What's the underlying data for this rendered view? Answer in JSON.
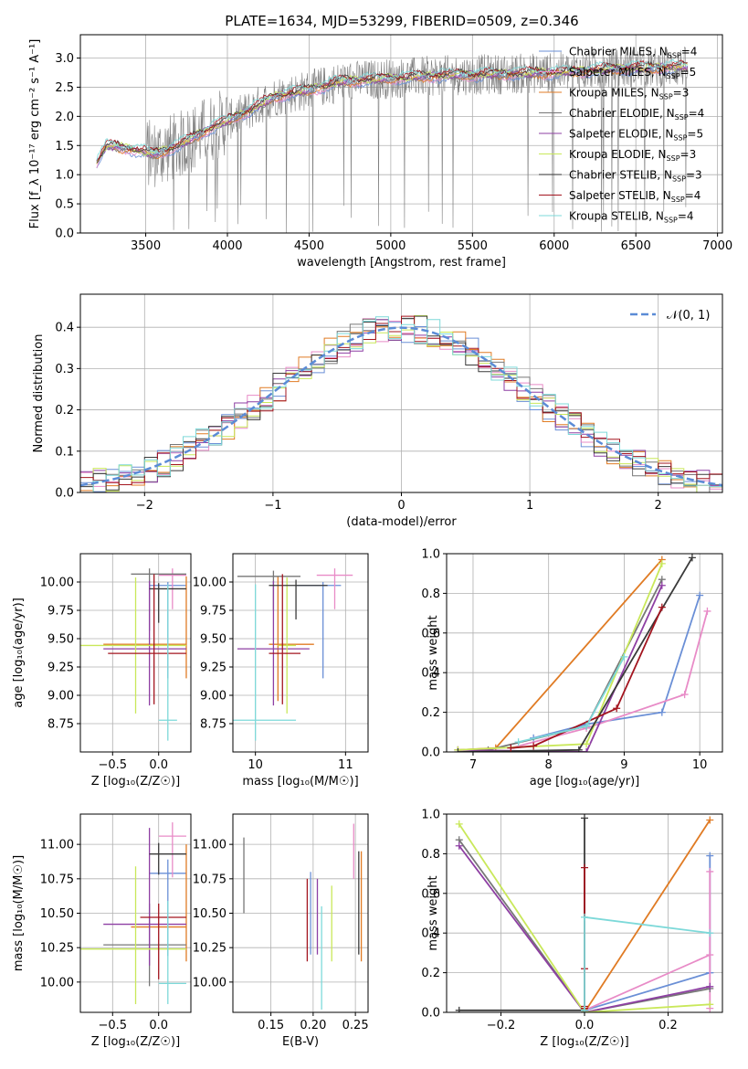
{
  "figure": {
    "title": "PLATE=1634, MJD=53299, FIBERID=0509, z=0.346"
  },
  "colors": {
    "series": [
      "#6a8fd6",
      "#e88bc7",
      "#e07b24",
      "#777777",
      "#8e3fa3",
      "#c9e85a",
      "#3a3a3a",
      "#a3151f",
      "#7dd9d9"
    ]
  },
  "chart_data": [
    {
      "id": "spectrum",
      "type": "line",
      "title": "PLATE=1634, MJD=53299, FIBERID=0509, z=0.346",
      "xlabel": "wavelength [Angstrom, rest frame]",
      "ylabel": "Flux [f_λ 10⁻¹⁷ erg cm⁻² s⁻¹ A⁻¹]",
      "xlim": [
        3100,
        7030
      ],
      "ylim": [
        0,
        3.4
      ],
      "xticks": [
        "3500",
        "4000",
        "4500",
        "5000",
        "5500",
        "6000",
        "6500",
        "7000"
      ],
      "yticks": [
        "0.0",
        "0.5",
        "1.0",
        "1.5",
        "2.0",
        "2.5",
        "3.0"
      ],
      "legend": "top-right",
      "series": [
        {
          "name": "Chabrier MILES, N_SSP=4",
          "label": "Chabrier MILES, N",
          "sub": "SSP",
          "post": "=4"
        },
        {
          "name": "Salpeter MILES, N_SSP=5",
          "label": "Salpeter MILES, N",
          "sub": "SSP",
          "post": "=5"
        },
        {
          "name": "Kroupa MILES, N_SSP=3",
          "label": "Kroupa MILES, N",
          "sub": "SSP",
          "post": "=3"
        },
        {
          "name": "Chabrier ELODIE, N_SSP=4",
          "label": "Chabrier ELODIE, N",
          "sub": "SSP",
          "post": "=4"
        },
        {
          "name": "Salpeter ELODIE, N_SSP=5",
          "label": "Salpeter ELODIE, N",
          "sub": "SSP",
          "post": "=5"
        },
        {
          "name": "Kroupa ELODIE, N_SSP=3",
          "label": "Kroupa ELODIE, N",
          "sub": "SSP",
          "post": "=3"
        },
        {
          "name": "Chabrier STELIB, N_SSP=3",
          "label": "Chabrier STELIB, N",
          "sub": "SSP",
          "post": "=3"
        },
        {
          "name": "Salpeter STELIB, N_SSP=4",
          "label": "Salpeter STELIB, N",
          "sub": "SSP",
          "post": "=4"
        },
        {
          "name": "Kroupa STELIB, N_SSP=4",
          "label": "Kroupa STELIB, N",
          "sub": "SSP",
          "post": "=4"
        }
      ],
      "continuum_knots": [
        [
          3200,
          1.2
        ],
        [
          3260,
          1.5
        ],
        [
          3400,
          1.45
        ],
        [
          3550,
          1.35
        ],
        [
          3700,
          1.5
        ],
        [
          3900,
          1.8
        ],
        [
          4100,
          2.05
        ],
        [
          4300,
          2.35
        ],
        [
          4500,
          2.45
        ],
        [
          4700,
          2.6
        ],
        [
          5000,
          2.65
        ],
        [
          5300,
          2.7
        ],
        [
          5600,
          2.72
        ],
        [
          6000,
          2.75
        ],
        [
          6400,
          2.82
        ],
        [
          6800,
          2.85
        ]
      ]
    },
    {
      "id": "residuals",
      "type": "histogram",
      "xlabel": "(data-model)/error",
      "ylabel": "Normed distribution",
      "xlim": [
        -2.5,
        2.5
      ],
      "ylim": [
        0,
        0.48
      ],
      "xticks": [
        "−2",
        "−1",
        "0",
        "1",
        "2"
      ],
      "yticks": [
        "0.0",
        "0.1",
        "0.2",
        "0.3",
        "0.4"
      ],
      "bin_width": 0.1,
      "legend": "top-right",
      "reference_curve": {
        "name": "N(0,1)",
        "label": "𝒩(0, 1)",
        "mean": 0,
        "sigma": 1
      }
    },
    {
      "id": "age-vs-z",
      "type": "errorbar",
      "xlabel": "Z [log₁₀(Z/Z☉)]",
      "ylabel": "age  [log₁₀(age/yr)]",
      "xlim": [
        -0.85,
        0.35
      ],
      "ylim": [
        8.5,
        10.25
      ],
      "xticks": [
        "−0.5",
        "0.0"
      ],
      "yticks": [
        "8.75",
        "9.00",
        "9.25",
        "9.50",
        "9.75",
        "10.00"
      ],
      "points": [
        {
          "x": 0.1,
          "xerr": [
            0.2,
            0.2
          ],
          "y": 9.97,
          "yerr": [
            0.82,
            0.03
          ]
        },
        {
          "x": 0.15,
          "xerr": [
            0.15,
            0.15
          ],
          "y": 10.06,
          "yerr": [
            0.3,
            0.06
          ]
        },
        {
          "x": 0.3,
          "xerr": [
            0.9,
            0.0
          ],
          "y": 9.45,
          "yerr": [
            0.3,
            0.6
          ]
        },
        {
          "x": -0.1,
          "xerr": [
            0.2,
            0.4
          ],
          "y": 10.07,
          "yerr": [
            0.5,
            0.05
          ]
        },
        {
          "x": -0.1,
          "xerr": [
            0.5,
            0.4
          ],
          "y": 9.41,
          "yerr": [
            0.5,
            0.6
          ]
        },
        {
          "x": -0.25,
          "xerr": [
            0.6,
            0.55
          ],
          "y": 9.44,
          "yerr": [
            0.6,
            0.6
          ]
        },
        {
          "x": 0.0,
          "xerr": [
            0.1,
            0.3
          ],
          "y": 9.94,
          "yerr": [
            0.3,
            0.05
          ]
        },
        {
          "x": -0.05,
          "xerr": [
            0.5,
            0.35
          ],
          "y": 9.37,
          "yerr": [
            0.45,
            0.7
          ]
        },
        {
          "x": 0.1,
          "xerr": [
            0.1,
            0.1
          ],
          "y": 8.78,
          "yerr": [
            0.18,
            1.2
          ]
        }
      ]
    },
    {
      "id": "age-vs-mass",
      "type": "errorbar",
      "xlabel": "mass [log₁₀(M/M☉)]",
      "ylabel": "",
      "xlim": [
        9.75,
        11.25
      ],
      "ylim": [
        8.5,
        10.25
      ],
      "xticks": [
        "10",
        "11"
      ],
      "yticks": [
        "8.75",
        "9.00",
        "9.25",
        "9.50",
        "9.75",
        "10.00"
      ],
      "points": [
        {
          "x": 10.75,
          "xerr": [
            0.3,
            0.2
          ],
          "y": 9.97,
          "yerr": [
            0.82,
            0.03
          ]
        },
        {
          "x": 10.88,
          "xerr": [
            0.2,
            0.2
          ],
          "y": 10.06,
          "yerr": [
            0.3,
            0.06
          ]
        },
        {
          "x": 10.25,
          "xerr": [
            0.1,
            0.4
          ],
          "y": 9.45,
          "yerr": [
            0.5,
            0.6
          ]
        },
        {
          "x": 10.2,
          "xerr": [
            0.4,
            0.3
          ],
          "y": 10.05,
          "yerr": [
            0.3,
            0.05
          ]
        },
        {
          "x": 10.2,
          "xerr": [
            0.4,
            0.4
          ],
          "y": 9.41,
          "yerr": [
            0.5,
            0.6
          ]
        },
        {
          "x": 10.35,
          "xerr": [
            0.1,
            0.1
          ],
          "y": 9.44,
          "yerr": [
            0.6,
            0.6
          ]
        },
        {
          "x": 10.45,
          "xerr": [
            0.3,
            0.35
          ],
          "y": 9.97,
          "yerr": [
            0.3,
            0.05
          ]
        },
        {
          "x": 10.3,
          "xerr": [
            0.15,
            0.2
          ],
          "y": 9.37,
          "yerr": [
            0.45,
            0.7
          ]
        },
        {
          "x": 10.0,
          "xerr": [
            0.25,
            0.45
          ],
          "y": 8.78,
          "yerr": [
            0.18,
            1.2
          ]
        }
      ]
    },
    {
      "id": "massweight-vs-age",
      "type": "line",
      "xlabel": "age  [log₁₀(age/yr)]",
      "ylabel": "mass weight",
      "xlim": [
        6.65,
        10.3
      ],
      "ylim": [
        0,
        1.0
      ],
      "xticks": [
        "7",
        "8",
        "9",
        "10"
      ],
      "yticks": [
        "0.0",
        "0.2",
        "0.4",
        "0.6",
        "0.8",
        "1.0"
      ],
      "grid": true,
      "series": [
        {
          "x": [
            7.8,
            8.5,
            9.5,
            10.0
          ],
          "y": [
            0.07,
            0.14,
            0.2,
            0.79
          ]
        },
        {
          "x": [
            7.5,
            8.5,
            9.8,
            10.1
          ],
          "y": [
            0.02,
            0.12,
            0.29,
            0.71
          ]
        },
        {
          "x": [
            6.8,
            7.3,
            9.5
          ],
          "y": [
            0.01,
            0.02,
            0.97
          ]
        },
        {
          "x": [
            7.2,
            8.5,
            9.5
          ],
          "y": [
            0.01,
            0.13,
            0.87
          ]
        },
        {
          "x": [
            6.8,
            8.5,
            9.5
          ],
          "y": [
            0.01,
            0.0,
            0.84
          ]
        },
        {
          "x": [
            6.8,
            8.5,
            9.5
          ],
          "y": [
            0.01,
            0.04,
            0.95
          ]
        },
        {
          "x": [
            6.8,
            8.4,
            9.9
          ],
          "y": [
            0.0,
            0.01,
            0.98
          ]
        },
        {
          "x": [
            7.5,
            7.8,
            8.9,
            9.5
          ],
          "y": [
            0.02,
            0.03,
            0.22,
            0.73
          ]
        },
        {
          "x": [
            7.6,
            8.5,
            9.0
          ],
          "y": [
            0.05,
            0.13,
            0.48
          ]
        }
      ]
    },
    {
      "id": "mass-vs-z",
      "type": "errorbar",
      "xlabel": "Z [log₁₀(Z/Z☉)]",
      "ylabel": "mass [log₁₀(M/M☉)]",
      "xlim": [
        -0.85,
        0.35
      ],
      "ylim": [
        9.78,
        11.22
      ],
      "xticks": [
        "−0.5",
        "0.0"
      ],
      "yticks": [
        "10.00",
        "10.25",
        "10.50",
        "10.75",
        "11.00"
      ],
      "points": [
        {
          "x": 0.1,
          "xerr": [
            0.2,
            0.2
          ],
          "y": 10.79,
          "yerr": [
            0.6,
            0.1
          ]
        },
        {
          "x": 0.15,
          "xerr": [
            0.15,
            0.15
          ],
          "y": 11.06,
          "yerr": [
            0.3,
            0.1
          ]
        },
        {
          "x": 0.3,
          "xerr": [
            0.6,
            0.0
          ],
          "y": 10.4,
          "yerr": [
            0.25,
            0.6
          ]
        },
        {
          "x": -0.1,
          "xerr": [
            0.5,
            0.4
          ],
          "y": 10.27,
          "yerr": [
            0.3,
            0.3
          ]
        },
        {
          "x": -0.1,
          "xerr": [
            0.5,
            0.4
          ],
          "y": 10.42,
          "yerr": [
            0.3,
            0.7
          ]
        },
        {
          "x": -0.25,
          "xerr": [
            0.6,
            0.55
          ],
          "y": 10.24,
          "yerr": [
            0.4,
            0.6
          ]
        },
        {
          "x": 0.0,
          "xerr": [
            0.1,
            0.3
          ],
          "y": 10.93,
          "yerr": [
            0.15,
            0.08
          ]
        },
        {
          "x": 0.0,
          "xerr": [
            0.2,
            0.3
          ],
          "y": 10.47,
          "yerr": [
            0.45,
            0.1
          ]
        },
        {
          "x": 0.1,
          "xerr": [
            0.1,
            0.2
          ],
          "y": 9.99,
          "yerr": [
            0.15,
            0.6
          ]
        }
      ]
    },
    {
      "id": "mass-vs-ebv",
      "type": "errorbar",
      "xlabel": "E(B-V)",
      "ylabel": "",
      "xlim": [
        0.105,
        0.265
      ],
      "ylim": [
        9.78,
        11.22
      ],
      "xticks": [
        "0.15",
        "0.20",
        "0.25"
      ],
      "yticks": [
        "10.00",
        "10.25",
        "10.50",
        "10.75",
        "11.00"
      ],
      "points": [
        {
          "x": 0.197,
          "xerr": [
            0,
            0
          ],
          "y": 10.5,
          "yerr": [
            0.3,
            0.3
          ]
        },
        {
          "x": 0.248,
          "xerr": [
            0,
            0
          ],
          "y": 11.0,
          "yerr": [
            0.25,
            0.15
          ]
        },
        {
          "x": 0.257,
          "xerr": [
            0,
            0
          ],
          "y": 10.55,
          "yerr": [
            0.4,
            0.4
          ]
        },
        {
          "x": 0.118,
          "xerr": [
            0,
            0
          ],
          "y": 10.8,
          "yerr": [
            0.3,
            0.25
          ]
        },
        {
          "x": 0.205,
          "xerr": [
            0,
            0
          ],
          "y": 10.5,
          "yerr": [
            0.3,
            0.25
          ]
        },
        {
          "x": 0.222,
          "xerr": [
            0,
            0
          ],
          "y": 10.45,
          "yerr": [
            0.3,
            0.25
          ]
        },
        {
          "x": 0.254,
          "xerr": [
            0,
            0
          ],
          "y": 10.5,
          "yerr": [
            0.3,
            0.45
          ]
        },
        {
          "x": 0.193,
          "xerr": [
            0,
            0
          ],
          "y": 10.4,
          "yerr": [
            0.25,
            0.35
          ]
        },
        {
          "x": 0.21,
          "xerr": [
            0,
            0
          ],
          "y": 10.2,
          "yerr": [
            0.4,
            0.35
          ]
        }
      ]
    },
    {
      "id": "massweight-vs-z",
      "type": "line",
      "xlabel": "Z [log₁₀(Z/Z☉)]",
      "ylabel": "mass weight",
      "xlim": [
        -0.33,
        0.33
      ],
      "ylim": [
        0,
        1.0
      ],
      "xticks": [
        "−0.2",
        "0.0",
        "0.2"
      ],
      "yticks": [
        "0.0",
        "0.2",
        "0.4",
        "0.6",
        "0.8",
        "1.0"
      ],
      "grid": true,
      "series": [
        {
          "x": [
            0.0,
            0.3,
            0.3,
            0.3
          ],
          "y": [
            0.01,
            0.2,
            0.79,
            0.2
          ]
        },
        {
          "x": [
            0.0,
            0.3,
            0.3,
            0.3
          ],
          "y": [
            0.01,
            0.29,
            0.71,
            0.02
          ]
        },
        {
          "x": [
            0.0,
            0.3
          ],
          "y": [
            0.0,
            0.97
          ]
        },
        {
          "x": [
            -0.3,
            0.0,
            0.3
          ],
          "y": [
            0.87,
            0.0,
            0.12
          ]
        },
        {
          "x": [
            -0.3,
            0.0,
            0.3
          ],
          "y": [
            0.84,
            0.0,
            0.13
          ]
        },
        {
          "x": [
            -0.3,
            0.0,
            0.3
          ],
          "y": [
            0.95,
            0.0,
            0.04
          ]
        },
        {
          "x": [
            -0.3,
            0.0,
            0.0
          ],
          "y": [
            0.01,
            0.01,
            0.98
          ]
        },
        {
          "x": [
            0.0,
            0.0,
            0.0,
            0.0
          ],
          "y": [
            0.02,
            0.22,
            0.73,
            0.03
          ]
        },
        {
          "x": [
            0.0,
            0.0,
            0.3
          ],
          "y": [
            0.01,
            0.48,
            0.4
          ]
        }
      ]
    }
  ]
}
